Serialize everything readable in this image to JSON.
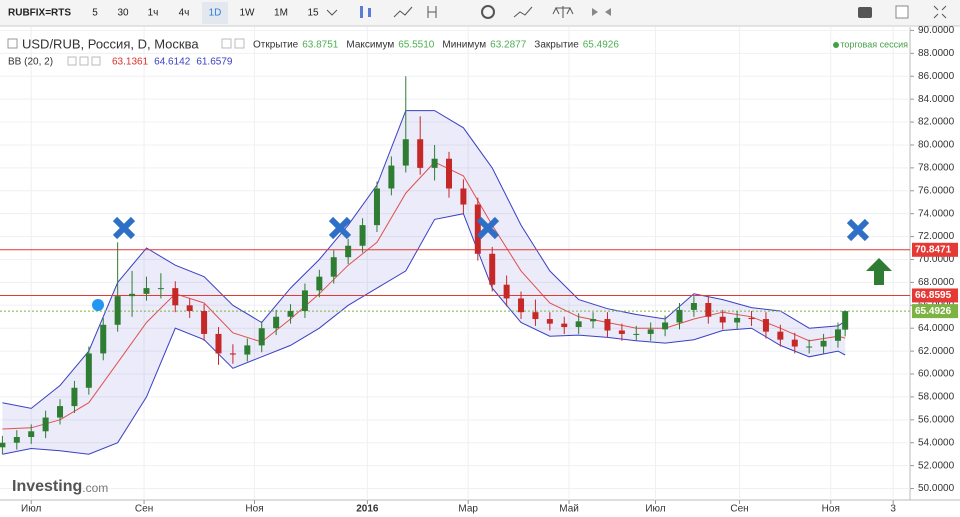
{
  "toolbar": {
    "symbol": "RUBFIX=RTS",
    "intervals": [
      "5",
      "30",
      "1ч",
      "4ч",
      "1D",
      "1W",
      "1M",
      "15"
    ],
    "active": 4
  },
  "chart_data": {
    "type": "candlestick",
    "title": "USD/RUB, Россия, D, Москва",
    "ohlc_header": [
      {
        "name": "Открытие",
        "value": "63.8751"
      },
      {
        "name": "Максимум",
        "value": "65.5510"
      },
      {
        "name": "Минимум",
        "value": "63.2877"
      },
      {
        "name": "Закрытие",
        "value": "65.4926"
      }
    ],
    "session_label": "торговая сессия",
    "indicator": {
      "name": "BB (20, 2)",
      "values": [
        {
          "text": "63.1361",
          "color": "#d9302b"
        },
        {
          "text": "64.6142",
          "color": "#3a3fc4"
        },
        {
          "text": "61.6579",
          "color": "#3a3fc4"
        }
      ]
    },
    "watermark": {
      "brand": "Investing",
      "suffix": ".com"
    },
    "x": [
      -12,
      -6,
      0,
      6,
      12,
      18,
      24,
      30,
      36,
      42,
      48,
      54,
      60,
      66,
      72,
      78,
      84,
      90,
      96,
      102,
      108,
      114,
      120,
      126,
      132,
      138,
      144,
      150,
      156,
      162,
      168,
      174,
      180,
      186,
      192,
      198,
      204,
      210,
      216,
      222,
      228,
      234,
      240,
      246,
      252,
      258,
      264,
      270,
      276,
      282,
      288,
      294,
      300,
      306,
      312,
      318,
      324,
      330,
      336,
      339
    ],
    "open": [
      53.6,
      54,
      54.5,
      55,
      56.2,
      57.2,
      58.8,
      61.8,
      64.3,
      66.8,
      67,
      67.5,
      67.5,
      66,
      65.5,
      63.5,
      61.8,
      61.7,
      62.5,
      64,
      65,
      65.5,
      67.3,
      68.5,
      70.2,
      71.2,
      73,
      76.2,
      78.2,
      80.5,
      78,
      78.8,
      76.2,
      74.8,
      70.5,
      67.8,
      66.6,
      65.4,
      64.8,
      64.4,
      64.1,
      64.6,
      64.8,
      63.8,
      63.5,
      63.5,
      63.9,
      64.5,
      65.6,
      66.2,
      65,
      64.5,
      64.9,
      64.8,
      63.7,
      63,
      62.4,
      62.4,
      62.9,
      63.8751
    ],
    "high": [
      54.6,
      55.1,
      55.6,
      56.8,
      57.8,
      59.4,
      62.4,
      64.9,
      71.5,
      69,
      68.5,
      68.8,
      68.1,
      66.6,
      66.1,
      64.1,
      62.6,
      63.1,
      64.6,
      65.6,
      66.1,
      67.9,
      69.1,
      70.8,
      71.8,
      73.6,
      76.8,
      79,
      86,
      82.5,
      80,
      79.4,
      77,
      75.4,
      71.1,
      68.6,
      67.2,
      66.5,
      65.4,
      65,
      65.3,
      65.4,
      65.4,
      64.4,
      64.2,
      64.5,
      65.1,
      66.2,
      66.8,
      66.8,
      65.6,
      65.5,
      65.5,
      65.4,
      64.3,
      63.6,
      63,
      63.5,
      64.5,
      65.551
    ],
    "low": [
      53,
      53.4,
      53.9,
      54.4,
      55.6,
      56.6,
      58.2,
      61.2,
      63.7,
      65,
      66.4,
      66.6,
      65.4,
      64.9,
      62.9,
      60.8,
      60.9,
      61.1,
      61.9,
      63.4,
      64.4,
      64.9,
      66.7,
      67.9,
      69.6,
      70.6,
      72.4,
      75.6,
      77.6,
      77.4,
      76.9,
      75.4,
      74,
      69.9,
      67.2,
      65.9,
      64.8,
      64.2,
      63.8,
      63.5,
      63.5,
      64,
      63.2,
      62.9,
      62.9,
      62.9,
      63.3,
      63.9,
      65,
      64.4,
      63.9,
      63.9,
      64.2,
      63.1,
      62.4,
      61.8,
      61.8,
      61.8,
      62.3,
      63.2877
    ],
    "close": [
      54,
      54.5,
      55,
      56.2,
      57.2,
      58.8,
      61.8,
      64.3,
      66.8,
      67,
      67.5,
      67.5,
      66,
      65.5,
      63.5,
      61.8,
      61.7,
      62.5,
      64,
      65,
      65.5,
      67.3,
      68.5,
      70.2,
      71.2,
      73,
      76.2,
      78.2,
      80.5,
      78,
      78.8,
      76.2,
      74.8,
      70.5,
      67.8,
      66.6,
      65.4,
      64.8,
      64.4,
      64.1,
      64.6,
      64.8,
      63.8,
      63.5,
      63.5,
      63.9,
      64.5,
      65.6,
      66.2,
      65,
      64.5,
      64.9,
      64.8,
      63.7,
      63,
      62.4,
      62.4,
      62.9,
      63.9,
      65.4926
    ],
    "up_color": "#2e7d32",
    "down_color": "#c62828",
    "bollinger": {
      "x": [
        -12,
        0,
        12,
        24,
        36,
        48,
        60,
        72,
        84,
        96,
        108,
        120,
        132,
        144,
        156,
        168,
        180,
        192,
        204,
        216,
        228,
        240,
        252,
        264,
        276,
        288,
        300,
        312,
        324,
        336,
        339
      ],
      "upper": [
        57.5,
        57,
        59,
        62,
        68,
        71,
        69.5,
        68.5,
        66,
        64.5,
        67.5,
        70,
        73,
        76.5,
        83,
        83,
        81.5,
        78,
        73,
        69,
        66.5,
        65.7,
        65.2,
        64.8,
        67,
        66.5,
        65.8,
        65.5,
        64,
        64.2,
        64.6142
      ],
      "middle": [
        55.2,
        55.3,
        56,
        57.5,
        61,
        64.5,
        67,
        66.2,
        63.6,
        62.8,
        64.8,
        67,
        69.5,
        71.5,
        75.8,
        78.5,
        77.3,
        73,
        69,
        66.2,
        65,
        64.5,
        64,
        64,
        64.8,
        65.4,
        65,
        64,
        62.9,
        63.3,
        63.1361
      ],
      "lower": [
        53,
        53.5,
        53.3,
        53,
        54,
        58,
        64,
        63,
        60.5,
        61.5,
        62.5,
        64,
        66,
        67.5,
        69,
        73.5,
        74,
        67.5,
        64.5,
        63.3,
        63.4,
        63.2,
        62.9,
        62.7,
        63,
        63.8,
        64,
        62.5,
        61.5,
        62,
        61.6579
      ],
      "band_color": "#3a3fc4",
      "mid_color": "#e05050"
    },
    "price_lines": [
      {
        "value": 70.8471,
        "label": "70.8471",
        "color": "#e53935"
      },
      {
        "value": 66.8595,
        "label": "66.8595",
        "color": "#e53935"
      },
      {
        "value": 65.4926,
        "label": "65.4926",
        "color": "#7cb342",
        "dotted": true
      }
    ],
    "xlim": [
      -13,
      366
    ],
    "ylim": [
      49,
      90.3
    ],
    "xticks": [
      {
        "value": 0,
        "label": "Июл"
      },
      {
        "value": 47,
        "label": "Сен"
      },
      {
        "value": 93,
        "label": "Ноя"
      },
      {
        "value": 140,
        "label": "2016"
      },
      {
        "value": 182,
        "label": "Мар"
      },
      {
        "value": 224,
        "label": "Май"
      },
      {
        "value": 260,
        "label": "Июл"
      },
      {
        "value": 295,
        "label": "Сен"
      },
      {
        "value": 333,
        "label": "Ноя"
      },
      {
        "value": 359,
        "label": "3"
      }
    ],
    "yticks": [
      {
        "value": 50,
        "label": "50.0000"
      },
      {
        "value": 52,
        "label": "52.0000"
      },
      {
        "value": 54,
        "label": "54.0000"
      },
      {
        "value": 56,
        "label": "56.0000"
      },
      {
        "value": 58,
        "label": "58.0000"
      },
      {
        "value": 60,
        "label": "60.0000"
      },
      {
        "value": 62,
        "label": "62.0000"
      },
      {
        "value": 64,
        "label": "64.0000"
      },
      {
        "value": 66,
        "label": "66.0000"
      },
      {
        "value": 68,
        "label": "68.0000"
      },
      {
        "value": 70,
        "label": "70.0000"
      },
      {
        "value": 72,
        "label": "72.0000"
      },
      {
        "value": 74,
        "label": "74.0000"
      },
      {
        "value": 76,
        "label": "76.0000"
      },
      {
        "value": 78,
        "label": "78.0000"
      },
      {
        "value": 80,
        "label": "80.0000"
      },
      {
        "value": 82,
        "label": "82.0000"
      },
      {
        "value": 84,
        "label": "84.0000"
      },
      {
        "value": 86,
        "label": "86.0000"
      },
      {
        "value": 88,
        "label": "88.0000"
      },
      {
        "value": 90,
        "label": "90.0000"
      }
    ],
    "grid": true
  }
}
